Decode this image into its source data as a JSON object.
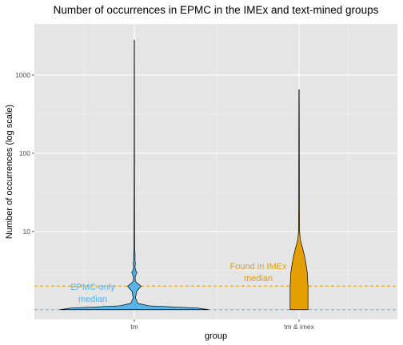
{
  "chart_data": {
    "type": "violin",
    "title": "Number of occurrences in EPMC in the IMEx and text-mined groups",
    "xlabel": "group",
    "ylabel": "Number of occurrences (log scale)",
    "y_scale": "log10",
    "ylim": [
      0.75,
      4500
    ],
    "categories": [
      "tm",
      "tm & imex"
    ],
    "y_ticks": [
      {
        "value": 10,
        "label": "10"
      },
      {
        "value": 100,
        "label": "100"
      },
      {
        "value": 1000,
        "label": "1000"
      }
    ],
    "grid": true,
    "series": [
      {
        "category": "tm",
        "fill": "#56B4E9",
        "max": 2800,
        "median": 1,
        "density_profile": [
          [
            1.0,
            1.0
          ],
          [
            1.05,
            0.85
          ],
          [
            1.12,
            0.2
          ],
          [
            1.2,
            0.05
          ],
          [
            1.4,
            0.015
          ],
          [
            1.7,
            0.03
          ],
          [
            1.85,
            0.06
          ],
          [
            1.95,
            0.085
          ],
          [
            2.0,
            0.09
          ],
          [
            2.1,
            0.06
          ],
          [
            2.3,
            0.015
          ],
          [
            2.6,
            0.01
          ],
          [
            2.85,
            0.025
          ],
          [
            3.0,
            0.035
          ],
          [
            3.15,
            0.02
          ],
          [
            3.5,
            0.008
          ],
          [
            3.9,
            0.015
          ],
          [
            4.3,
            0.008
          ],
          [
            5.0,
            0.01
          ],
          [
            6.0,
            0.005
          ],
          [
            10,
            0.004
          ],
          [
            30,
            0.003
          ],
          [
            100,
            0.0025
          ],
          [
            1000,
            0.0018
          ],
          [
            2800,
            0.0015
          ]
        ]
      },
      {
        "category": "tm & imex",
        "fill": "#E69F00",
        "max": 650,
        "median": 2,
        "density_profile": [
          [
            1.0,
            0.12
          ],
          [
            1.5,
            0.12
          ],
          [
            2.0,
            0.12
          ],
          [
            3.0,
            0.11
          ],
          [
            4.0,
            0.09
          ],
          [
            5.0,
            0.07
          ],
          [
            6.0,
            0.05
          ],
          [
            7.0,
            0.03
          ],
          [
            8.0,
            0.015
          ],
          [
            10,
            0.008
          ],
          [
            20,
            0.005
          ],
          [
            50,
            0.004
          ],
          [
            200,
            0.003
          ],
          [
            650,
            0.002
          ]
        ]
      }
    ],
    "reference_lines": [
      {
        "value": 1,
        "color": "#56B4E9",
        "style": "dashed",
        "label_lines": [
          "EPMC-only",
          "median"
        ]
      },
      {
        "value": 2,
        "color": "#E69F00",
        "style": "dashed",
        "label_lines": [
          "Found in IMEx",
          "median"
        ]
      }
    ],
    "colors": {
      "panel": "#E5E5E5",
      "grid_major": "#FFFFFF",
      "violin_outline": "#000000"
    }
  }
}
